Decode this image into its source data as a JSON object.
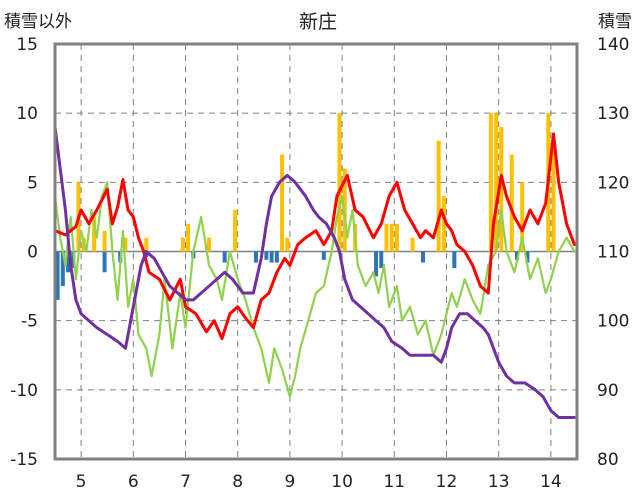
{
  "chart_data": {
    "type": "line",
    "title": "新庄",
    "ylabel_left": "積雪以外",
    "ylabel_right": "積雪",
    "y_left_range": [
      -15,
      15
    ],
    "y_left_ticks": [
      "15",
      "10",
      "5",
      "0",
      "-5",
      "-10",
      "-15"
    ],
    "y_right_range": [
      80,
      140
    ],
    "y_right_ticks": [
      "140",
      "130",
      "120",
      "110",
      "100",
      "90",
      "80"
    ],
    "x_range": [
      4.5,
      14.5
    ],
    "x_ticks": [
      "5",
      "6",
      "7",
      "8",
      "9",
      "10",
      "11",
      "12",
      "13",
      "14"
    ],
    "grid": "dashed",
    "colors": {
      "precip_bar": "#ffc000",
      "negative_bar": "#2e75b6",
      "red_line": "#ff0000",
      "green_line": "#92d050",
      "purple_line": "#7030a0",
      "frame": "#808080"
    },
    "bars_orange": [
      [
        4.95,
        5
      ],
      [
        5.05,
        1
      ],
      [
        5.25,
        2.5
      ],
      [
        5.45,
        1.5
      ],
      [
        5.85,
        1
      ],
      [
        6.25,
        1
      ],
      [
        6.95,
        1
      ],
      [
        7.05,
        2
      ],
      [
        7.45,
        1
      ],
      [
        7.95,
        3
      ],
      [
        8.85,
        7
      ],
      [
        8.95,
        1
      ],
      [
        9.95,
        10
      ],
      [
        10.05,
        6
      ],
      [
        10.25,
        2
      ],
      [
        10.85,
        2
      ],
      [
        10.95,
        2
      ],
      [
        11.05,
        2
      ],
      [
        11.35,
        1
      ],
      [
        11.85,
        8
      ],
      [
        11.95,
        4
      ],
      [
        12.85,
        10
      ],
      [
        12.95,
        10
      ],
      [
        13.05,
        9
      ],
      [
        13.25,
        7
      ],
      [
        13.45,
        5
      ],
      [
        13.95,
        10
      ],
      [
        14.05,
        8
      ]
    ],
    "bars_blue": [
      [
        4.55,
        -3.5
      ],
      [
        4.65,
        -2.5
      ],
      [
        4.75,
        -1.5
      ],
      [
        4.85,
        -1.2
      ],
      [
        5.45,
        -1.5
      ],
      [
        5.75,
        -0.8
      ],
      [
        6.25,
        -0.4
      ],
      [
        7.15,
        -0.5
      ],
      [
        7.75,
        -0.8
      ],
      [
        8.35,
        -0.8
      ],
      [
        8.55,
        -0.6
      ],
      [
        8.65,
        -0.8
      ],
      [
        8.75,
        -0.8
      ],
      [
        9.65,
        -0.6
      ],
      [
        10.65,
        -1.8
      ],
      [
        10.75,
        -1.2
      ],
      [
        11.55,
        -0.8
      ],
      [
        12.15,
        -1.2
      ],
      [
        13.35,
        -0.6
      ],
      [
        13.55,
        -0.8
      ]
    ],
    "red_series": [
      [
        4.5,
        1.5
      ],
      [
        4.7,
        1.2
      ],
      [
        4.9,
        1.8
      ],
      [
        5.0,
        3.0
      ],
      [
        5.15,
        2.0
      ],
      [
        5.3,
        3.0
      ],
      [
        5.5,
        4.5
      ],
      [
        5.6,
        2.0
      ],
      [
        5.7,
        3.2
      ],
      [
        5.8,
        5.2
      ],
      [
        5.9,
        3.0
      ],
      [
        6.0,
        2.5
      ],
      [
        6.1,
        1.0
      ],
      [
        6.2,
        0
      ],
      [
        6.3,
        -1.5
      ],
      [
        6.5,
        -2.0
      ],
      [
        6.7,
        -3.5
      ],
      [
        6.9,
        -2.0
      ],
      [
        7.0,
        -4.0
      ],
      [
        7.2,
        -4.5
      ],
      [
        7.4,
        -5.8
      ],
      [
        7.55,
        -5.0
      ],
      [
        7.7,
        -6.3
      ],
      [
        7.85,
        -4.5
      ],
      [
        8.0,
        -4.0
      ],
      [
        8.15,
        -4.8
      ],
      [
        8.3,
        -5.5
      ],
      [
        8.45,
        -3.5
      ],
      [
        8.6,
        -3.0
      ],
      [
        8.75,
        -1.5
      ],
      [
        8.9,
        -0.5
      ],
      [
        9.0,
        -1.0
      ],
      [
        9.15,
        0.5
      ],
      [
        9.3,
        1.0
      ],
      [
        9.5,
        1.5
      ],
      [
        9.65,
        0.5
      ],
      [
        9.8,
        1.5
      ],
      [
        9.9,
        4.0
      ],
      [
        10.1,
        5.5
      ],
      [
        10.25,
        3.0
      ],
      [
        10.4,
        2.5
      ],
      [
        10.6,
        1.0
      ],
      [
        10.75,
        2.0
      ],
      [
        10.9,
        4.0
      ],
      [
        11.05,
        5.0
      ],
      [
        11.2,
        3.0
      ],
      [
        11.35,
        2.0
      ],
      [
        11.5,
        1.0
      ],
      [
        11.6,
        1.5
      ],
      [
        11.75,
        1.0
      ],
      [
        11.9,
        3.0
      ],
      [
        12.0,
        2.0
      ],
      [
        12.1,
        1.5
      ],
      [
        12.2,
        0.5
      ],
      [
        12.35,
        0
      ],
      [
        12.5,
        -1.0
      ],
      [
        12.65,
        -2.5
      ],
      [
        12.8,
        -3.0
      ],
      [
        12.9,
        2.0
      ],
      [
        13.05,
        5.5
      ],
      [
        13.15,
        4.0
      ],
      [
        13.3,
        2.5
      ],
      [
        13.45,
        1.5
      ],
      [
        13.6,
        3.0
      ],
      [
        13.75,
        2.0
      ],
      [
        13.9,
        3.5
      ],
      [
        14.05,
        8.5
      ],
      [
        14.15,
        5.0
      ],
      [
        14.3,
        2.0
      ],
      [
        14.45,
        0.5
      ]
    ],
    "green_series": [
      [
        4.5,
        4.0
      ],
      [
        4.6,
        1.0
      ],
      [
        4.7,
        -1.0
      ],
      [
        4.8,
        2.5
      ],
      [
        4.9,
        -2.0
      ],
      [
        5.0,
        1.5
      ],
      [
        5.1,
        0
      ],
      [
        5.2,
        3.0
      ],
      [
        5.3,
        1.0
      ],
      [
        5.4,
        4.0
      ],
      [
        5.5,
        5.0
      ],
      [
        5.6,
        0
      ],
      [
        5.7,
        -3.5
      ],
      [
        5.8,
        1.5
      ],
      [
        5.9,
        -4.0
      ],
      [
        6.0,
        -2.0
      ],
      [
        6.1,
        -6.0
      ],
      [
        6.25,
        -7.0
      ],
      [
        6.35,
        -9.0
      ],
      [
        6.5,
        -6.0
      ],
      [
        6.6,
        -2.0
      ],
      [
        6.75,
        -7.0
      ],
      [
        6.9,
        -3.0
      ],
      [
        7.0,
        -5.5
      ],
      [
        7.15,
        0
      ],
      [
        7.3,
        2.5
      ],
      [
        7.45,
        -1.0
      ],
      [
        7.6,
        -2.0
      ],
      [
        7.7,
        -3.5
      ],
      [
        7.85,
        0
      ],
      [
        8.0,
        -2.0
      ],
      [
        8.15,
        -3.5
      ],
      [
        8.3,
        -5.5
      ],
      [
        8.45,
        -7.0
      ],
      [
        8.6,
        -9.5
      ],
      [
        8.7,
        -7.0
      ],
      [
        8.85,
        -8.5
      ],
      [
        9.0,
        -10.5
      ],
      [
        9.1,
        -9.0
      ],
      [
        9.2,
        -7.0
      ],
      [
        9.35,
        -5.0
      ],
      [
        9.5,
        -3.0
      ],
      [
        9.65,
        -2.5
      ],
      [
        9.8,
        0
      ],
      [
        9.9,
        2.5
      ],
      [
        10.0,
        4.0
      ],
      [
        10.1,
        1.0
      ],
      [
        10.2,
        3.0
      ],
      [
        10.3,
        -1.0
      ],
      [
        10.45,
        -2.5
      ],
      [
        10.6,
        -1.5
      ],
      [
        10.7,
        -3.0
      ],
      [
        10.8,
        -1.0
      ],
      [
        10.9,
        -4.0
      ],
      [
        11.05,
        -2.5
      ],
      [
        11.15,
        -5.0
      ],
      [
        11.3,
        -4.0
      ],
      [
        11.45,
        -6.0
      ],
      [
        11.6,
        -5.0
      ],
      [
        11.75,
        -7.5
      ],
      [
        11.9,
        -6.0
      ],
      [
        12.0,
        -4.5
      ],
      [
        12.1,
        -3.0
      ],
      [
        12.2,
        -4.0
      ],
      [
        12.35,
        -2.0
      ],
      [
        12.5,
        -3.5
      ],
      [
        12.65,
        -4.5
      ],
      [
        12.8,
        -1.0
      ],
      [
        12.95,
        0
      ],
      [
        13.05,
        3.0
      ],
      [
        13.15,
        0
      ],
      [
        13.3,
        -1.5
      ],
      [
        13.45,
        1.0
      ],
      [
        13.6,
        -2.0
      ],
      [
        13.75,
        -0.5
      ],
      [
        13.9,
        -3.0
      ],
      [
        14.0,
        -2.0
      ],
      [
        14.15,
        0
      ],
      [
        14.3,
        1.0
      ],
      [
        14.45,
        0
      ]
    ],
    "purple_series": [
      [
        4.5,
        128
      ],
      [
        4.6,
        122
      ],
      [
        4.7,
        116
      ],
      [
        4.8,
        108
      ],
      [
        4.9,
        103
      ],
      [
        5.0,
        101
      ],
      [
        5.15,
        100
      ],
      [
        5.3,
        99
      ],
      [
        5.5,
        98
      ],
      [
        5.7,
        97
      ],
      [
        5.85,
        96
      ],
      [
        5.95,
        100
      ],
      [
        6.05,
        104
      ],
      [
        6.15,
        108
      ],
      [
        6.25,
        110
      ],
      [
        6.4,
        109
      ],
      [
        6.55,
        107
      ],
      [
        6.7,
        105
      ],
      [
        6.85,
        104
      ],
      [
        7.0,
        103
      ],
      [
        7.15,
        103
      ],
      [
        7.3,
        104
      ],
      [
        7.45,
        105
      ],
      [
        7.6,
        106
      ],
      [
        7.75,
        107
      ],
      [
        7.9,
        106
      ],
      [
        8.0,
        105
      ],
      [
        8.1,
        104
      ],
      [
        8.2,
        104
      ],
      [
        8.3,
        104
      ],
      [
        8.45,
        109
      ],
      [
        8.55,
        114
      ],
      [
        8.65,
        118
      ],
      [
        8.8,
        120
      ],
      [
        8.95,
        121
      ],
      [
        9.1,
        120
      ],
      [
        9.3,
        118
      ],
      [
        9.45,
        116
      ],
      [
        9.55,
        115
      ],
      [
        9.7,
        114
      ],
      [
        9.85,
        112
      ],
      [
        9.95,
        110
      ],
      [
        10.05,
        106
      ],
      [
        10.2,
        103
      ],
      [
        10.35,
        102
      ],
      [
        10.5,
        101
      ],
      [
        10.65,
        100
      ],
      [
        10.8,
        99
      ],
      [
        10.95,
        97
      ],
      [
        11.15,
        96
      ],
      [
        11.3,
        95
      ],
      [
        11.45,
        95
      ],
      [
        11.6,
        95
      ],
      [
        11.75,
        95
      ],
      [
        11.9,
        94
      ],
      [
        12.0,
        96
      ],
      [
        12.1,
        99
      ],
      [
        12.25,
        101
      ],
      [
        12.4,
        101
      ],
      [
        12.55,
        100
      ],
      [
        12.7,
        99
      ],
      [
        12.8,
        98
      ],
      [
        12.9,
        96
      ],
      [
        13.0,
        94
      ],
      [
        13.15,
        92
      ],
      [
        13.3,
        91
      ],
      [
        13.5,
        91
      ],
      [
        13.7,
        90
      ],
      [
        13.85,
        89
      ],
      [
        14.0,
        87
      ],
      [
        14.15,
        86
      ],
      [
        14.3,
        86
      ],
      [
        14.45,
        86
      ]
    ]
  }
}
